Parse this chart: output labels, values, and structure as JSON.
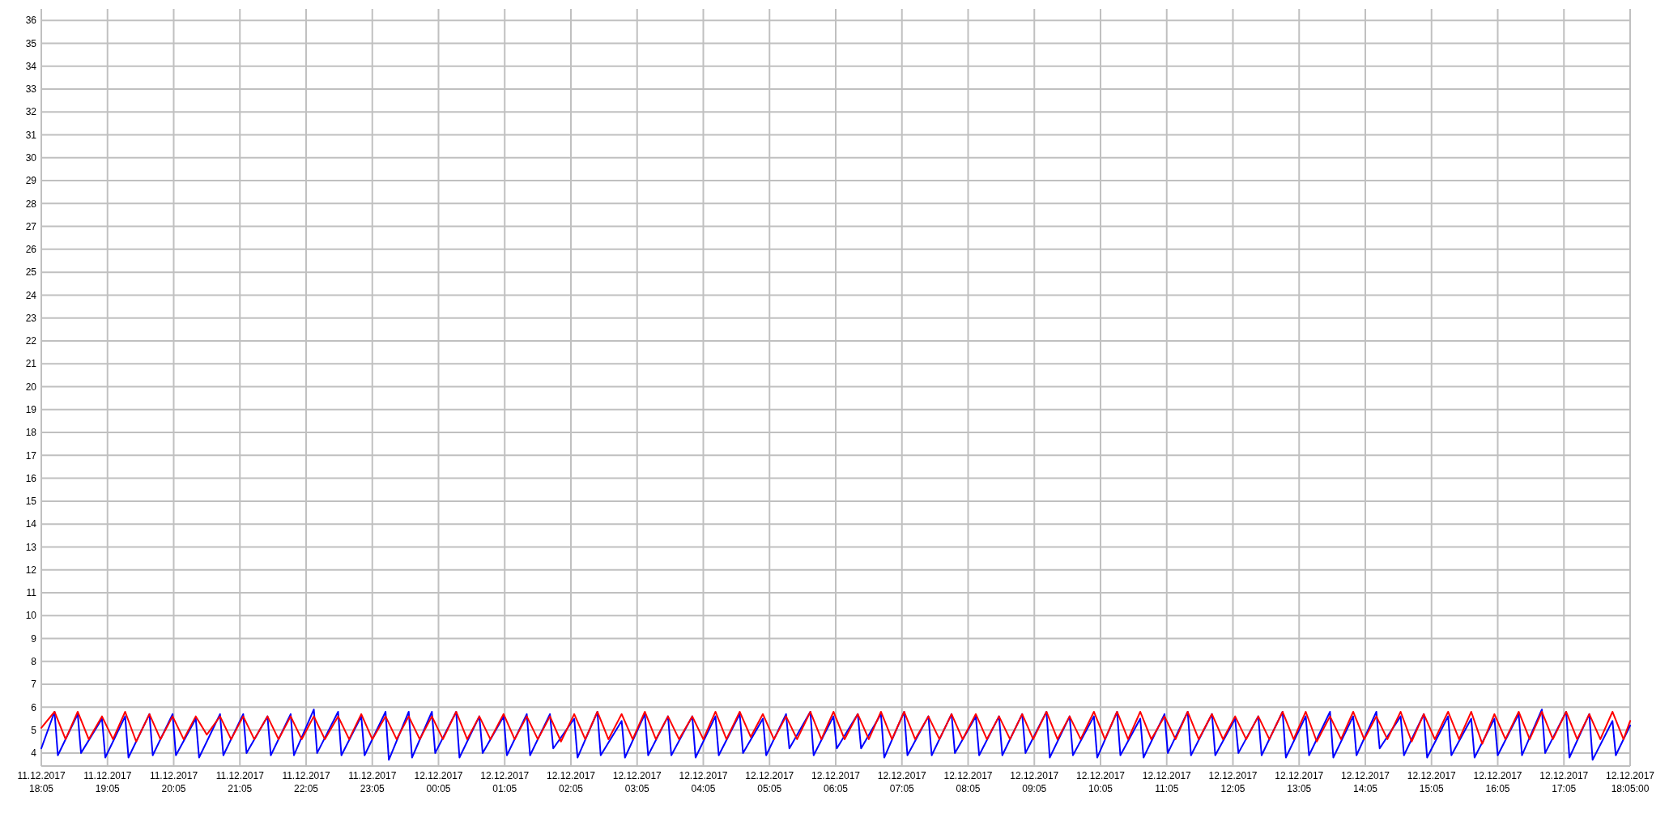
{
  "chart_data": {
    "type": "line",
    "xlim": [
      "2017-12-11T18:05",
      "2017-12-12T18:05"
    ],
    "ylim": [
      3.43,
      36.5
    ],
    "grid": true,
    "line_style": "solid",
    "marker": "none",
    "yticks": [
      4,
      5,
      6,
      7,
      8,
      9,
      10,
      11,
      12,
      13,
      14,
      15,
      16,
      17,
      18,
      19,
      20,
      21,
      22,
      23,
      24,
      25,
      26,
      27,
      28,
      29,
      30,
      31,
      32,
      33,
      34,
      35,
      36
    ],
    "xticks": [
      {
        "value": "2017-12-11T18:05",
        "label": "11.12.2017\n18:05"
      },
      {
        "value": "2017-12-11T19:05",
        "label": "11.12.2017\n19:05"
      },
      {
        "value": "2017-12-11T20:05",
        "label": "11.12.2017\n20:05"
      },
      {
        "value": "2017-12-11T21:05",
        "label": "11.12.2017\n21:05"
      },
      {
        "value": "2017-12-11T22:05",
        "label": "11.12.2017\n22:05"
      },
      {
        "value": "2017-12-11T23:05",
        "label": "11.12.2017\n23:05"
      },
      {
        "value": "2017-12-12T00:05",
        "label": "12.12.2017\n00:05"
      },
      {
        "value": "2017-12-12T01:05",
        "label": "12.12.2017\n01:05"
      },
      {
        "value": "2017-12-12T02:05",
        "label": "12.12.2017\n02:05"
      },
      {
        "value": "2017-12-12T03:05",
        "label": "12.12.2017\n03:05"
      },
      {
        "value": "2017-12-12T04:05",
        "label": "12.12.2017\n04:05"
      },
      {
        "value": "2017-12-12T05:05",
        "label": "12.12.2017\n05:05"
      },
      {
        "value": "2017-12-12T06:05",
        "label": "12.12.2017\n06:05"
      },
      {
        "value": "2017-12-12T07:05",
        "label": "12.12.2017\n07:05"
      },
      {
        "value": "2017-12-12T08:05",
        "label": "12.12.2017\n08:05"
      },
      {
        "value": "2017-12-12T09:05",
        "label": "12.12.2017\n09:05"
      },
      {
        "value": "2017-12-12T10:05",
        "label": "12.12.2017\n10:05"
      },
      {
        "value": "2017-12-12T11:05",
        "label": "12.12.2017\n11:05"
      },
      {
        "value": "2017-12-12T12:05",
        "label": "12.12.2017\n12:05"
      },
      {
        "value": "2017-12-12T13:05",
        "label": "12.12.2017\n13:05"
      },
      {
        "value": "2017-12-12T14:05",
        "label": "12.12.2017\n14:05"
      },
      {
        "value": "2017-12-12T15:05",
        "label": "12.12.2017\n15:05"
      },
      {
        "value": "2017-12-12T16:05",
        "label": "12.12.2017\n16:05"
      },
      {
        "value": "2017-12-12T17:05",
        "label": "12.12.2017\n17:05"
      },
      {
        "value": "2017-12-12T18:05",
        "label": "12.12.2017\n18:05:00"
      }
    ],
    "series": [
      {
        "color": "#0000ff",
        "x": [
          "2017-12-11T18:05",
          "2017-12-11T18:17",
          "2017-12-11T18:20",
          "2017-12-11T18:38",
          "2017-12-11T18:41",
          "2017-12-11T19:00",
          "2017-12-11T19:03",
          "2017-12-11T19:21",
          "2017-12-11T19:24",
          "2017-12-11T19:43",
          "2017-12-11T19:46",
          "2017-12-11T20:04",
          "2017-12-11T20:07",
          "2017-12-11T20:25",
          "2017-12-11T20:28",
          "2017-12-11T20:47",
          "2017-12-11T20:50",
          "2017-12-11T21:08",
          "2017-12-11T21:11",
          "2017-12-11T21:30",
          "2017-12-11T21:33",
          "2017-12-11T21:51",
          "2017-12-11T21:54",
          "2017-12-11T22:12",
          "2017-12-11T22:15",
          "2017-12-11T22:34",
          "2017-12-11T22:37",
          "2017-12-11T22:55",
          "2017-12-11T22:58",
          "2017-12-11T23:17",
          "2017-12-11T23:20",
          "2017-12-11T23:38",
          "2017-12-11T23:41",
          "2017-12-11T23:59",
          "2017-12-12T00:02",
          "2017-12-12T00:21",
          "2017-12-12T00:24",
          "2017-12-12T00:42",
          "2017-12-12T00:45",
          "2017-12-12T01:04",
          "2017-12-12T01:07",
          "2017-12-12T01:25",
          "2017-12-12T01:28",
          "2017-12-12T01:46",
          "2017-12-12T01:49",
          "2017-12-12T02:08",
          "2017-12-12T02:11",
          "2017-12-12T02:29",
          "2017-12-12T02:32",
          "2017-12-12T02:51",
          "2017-12-12T02:54",
          "2017-12-12T03:12",
          "2017-12-12T03:15",
          "2017-12-12T03:33",
          "2017-12-12T03:36",
          "2017-12-12T03:55",
          "2017-12-12T03:58",
          "2017-12-12T04:16",
          "2017-12-12T04:19",
          "2017-12-12T04:38",
          "2017-12-12T04:41",
          "2017-12-12T04:59",
          "2017-12-12T05:02",
          "2017-12-12T05:20",
          "2017-12-12T05:23",
          "2017-12-12T05:42",
          "2017-12-12T05:45",
          "2017-12-12T06:03",
          "2017-12-12T06:06",
          "2017-12-12T06:25",
          "2017-12-12T06:28",
          "2017-12-12T06:46",
          "2017-12-12T06:49",
          "2017-12-12T07:07",
          "2017-12-12T07:10",
          "2017-12-12T07:29",
          "2017-12-12T07:32",
          "2017-12-12T07:50",
          "2017-12-12T07:53",
          "2017-12-12T08:12",
          "2017-12-12T08:15",
          "2017-12-12T08:33",
          "2017-12-12T08:36",
          "2017-12-12T08:54",
          "2017-12-12T08:57",
          "2017-12-12T09:16",
          "2017-12-12T09:19",
          "2017-12-12T09:37",
          "2017-12-12T09:40",
          "2017-12-12T09:59",
          "2017-12-12T10:02",
          "2017-12-12T10:20",
          "2017-12-12T10:23",
          "2017-12-12T10:41",
          "2017-12-12T10:44",
          "2017-12-12T11:03",
          "2017-12-12T11:06",
          "2017-12-12T11:24",
          "2017-12-12T11:27",
          "2017-12-12T11:46",
          "2017-12-12T11:49",
          "2017-12-12T12:07",
          "2017-12-12T12:10",
          "2017-12-12T12:28",
          "2017-12-12T12:31",
          "2017-12-12T12:50",
          "2017-12-12T12:53",
          "2017-12-12T13:11",
          "2017-12-12T13:14",
          "2017-12-12T13:33",
          "2017-12-12T13:36",
          "2017-12-12T13:54",
          "2017-12-12T13:57",
          "2017-12-12T14:15",
          "2017-12-12T14:18",
          "2017-12-12T14:37",
          "2017-12-12T14:40",
          "2017-12-12T14:58",
          "2017-12-12T15:01",
          "2017-12-12T15:20",
          "2017-12-12T15:23",
          "2017-12-12T15:41",
          "2017-12-12T15:44",
          "2017-12-12T16:02",
          "2017-12-12T16:05",
          "2017-12-12T16:24",
          "2017-12-12T16:27",
          "2017-12-12T16:45",
          "2017-12-12T16:48",
          "2017-12-12T17:07",
          "2017-12-12T17:10",
          "2017-12-12T17:28",
          "2017-12-12T17:31",
          "2017-12-12T17:49",
          "2017-12-12T17:52",
          "2017-12-12T18:05"
        ],
        "values": [
          4.2,
          5.8,
          3.9,
          5.7,
          4.0,
          5.5,
          3.8,
          5.6,
          3.8,
          5.7,
          3.9,
          5.7,
          3.9,
          5.5,
          3.8,
          5.7,
          3.9,
          5.7,
          4.0,
          5.6,
          3.9,
          5.7,
          3.9,
          5.9,
          4.0,
          5.8,
          3.9,
          5.6,
          3.9,
          5.8,
          3.7,
          5.8,
          3.8,
          5.8,
          4.0,
          5.8,
          3.8,
          5.6,
          4.0,
          5.6,
          3.9,
          5.7,
          3.9,
          5.7,
          4.2,
          5.5,
          3.8,
          5.8,
          3.9,
          5.4,
          3.8,
          5.7,
          3.9,
          5.6,
          3.9,
          5.6,
          3.8,
          5.6,
          3.9,
          5.7,
          4.0,
          5.5,
          3.9,
          5.7,
          4.2,
          5.8,
          3.9,
          5.6,
          4.2,
          5.7,
          4.2,
          5.7,
          3.8,
          5.8,
          3.9,
          5.6,
          3.9,
          5.7,
          4.0,
          5.6,
          3.9,
          5.6,
          3.9,
          5.7,
          4.0,
          5.8,
          3.8,
          5.6,
          3.9,
          5.6,
          3.8,
          5.8,
          3.9,
          5.5,
          3.8,
          5.7,
          4.0,
          5.8,
          3.9,
          5.7,
          3.9,
          5.5,
          4.0,
          5.6,
          3.9,
          5.8,
          3.8,
          5.6,
          3.9,
          5.8,
          3.8,
          5.6,
          3.9,
          5.8,
          4.2,
          5.6,
          3.9,
          5.7,
          3.8,
          5.6,
          3.9,
          5.5,
          3.8,
          5.5,
          3.9,
          5.7,
          3.9,
          5.9,
          4.0,
          5.8,
          3.8,
          5.7,
          3.7,
          5.4,
          3.9,
          5.2
        ]
      },
      {
        "color": "#ff0000",
        "x": [
          "2017-12-11T18:05",
          "2017-12-11T18:17",
          "2017-12-11T18:27",
          "2017-12-11T18:38",
          "2017-12-11T18:48",
          "2017-12-11T19:00",
          "2017-12-11T19:10",
          "2017-12-11T19:21",
          "2017-12-11T19:31",
          "2017-12-11T19:43",
          "2017-12-11T19:53",
          "2017-12-11T20:04",
          "2017-12-11T20:14",
          "2017-12-11T20:25",
          "2017-12-11T20:35",
          "2017-12-11T20:47",
          "2017-12-11T20:57",
          "2017-12-11T21:08",
          "2017-12-11T21:18",
          "2017-12-11T21:30",
          "2017-12-11T21:40",
          "2017-12-11T21:51",
          "2017-12-11T22:01",
          "2017-12-11T22:12",
          "2017-12-11T22:22",
          "2017-12-11T22:34",
          "2017-12-11T22:44",
          "2017-12-11T22:55",
          "2017-12-11T23:05",
          "2017-12-11T23:17",
          "2017-12-11T23:27",
          "2017-12-11T23:38",
          "2017-12-11T23:48",
          "2017-12-11T23:59",
          "2017-12-12T00:09",
          "2017-12-12T00:21",
          "2017-12-12T00:31",
          "2017-12-12T00:42",
          "2017-12-12T00:52",
          "2017-12-12T01:04",
          "2017-12-12T01:14",
          "2017-12-12T01:25",
          "2017-12-12T01:35",
          "2017-12-12T01:46",
          "2017-12-12T01:56",
          "2017-12-12T02:08",
          "2017-12-12T02:18",
          "2017-12-12T02:29",
          "2017-12-12T02:39",
          "2017-12-12T02:51",
          "2017-12-12T03:01",
          "2017-12-12T03:12",
          "2017-12-12T03:22",
          "2017-12-12T03:33",
          "2017-12-12T03:43",
          "2017-12-12T03:55",
          "2017-12-12T04:05",
          "2017-12-12T04:16",
          "2017-12-12T04:26",
          "2017-12-12T04:38",
          "2017-12-12T04:48",
          "2017-12-12T04:59",
          "2017-12-12T05:09",
          "2017-12-12T05:20",
          "2017-12-12T05:30",
          "2017-12-12T05:42",
          "2017-12-12T05:52",
          "2017-12-12T06:03",
          "2017-12-12T06:13",
          "2017-12-12T06:25",
          "2017-12-12T06:35",
          "2017-12-12T06:46",
          "2017-12-12T06:56",
          "2017-12-12T07:07",
          "2017-12-12T07:17",
          "2017-12-12T07:29",
          "2017-12-12T07:39",
          "2017-12-12T07:50",
          "2017-12-12T08:00",
          "2017-12-12T08:12",
          "2017-12-12T08:22",
          "2017-12-12T08:33",
          "2017-12-12T08:43",
          "2017-12-12T08:54",
          "2017-12-12T09:04",
          "2017-12-12T09:16",
          "2017-12-12T09:26",
          "2017-12-12T09:37",
          "2017-12-12T09:47",
          "2017-12-12T09:59",
          "2017-12-12T10:09",
          "2017-12-12T10:20",
          "2017-12-12T10:30",
          "2017-12-12T10:41",
          "2017-12-12T10:51",
          "2017-12-12T11:03",
          "2017-12-12T11:13",
          "2017-12-12T11:24",
          "2017-12-12T11:34",
          "2017-12-12T11:46",
          "2017-12-12T11:56",
          "2017-12-12T12:07",
          "2017-12-12T12:17",
          "2017-12-12T12:28",
          "2017-12-12T12:38",
          "2017-12-12T12:50",
          "2017-12-12T13:00",
          "2017-12-12T13:11",
          "2017-12-12T13:21",
          "2017-12-12T13:33",
          "2017-12-12T13:43",
          "2017-12-12T13:54",
          "2017-12-12T14:04",
          "2017-12-12T14:15",
          "2017-12-12T14:25",
          "2017-12-12T14:37",
          "2017-12-12T14:47",
          "2017-12-12T14:58",
          "2017-12-12T15:08",
          "2017-12-12T15:20",
          "2017-12-12T15:30",
          "2017-12-12T15:41",
          "2017-12-12T15:51",
          "2017-12-12T16:02",
          "2017-12-12T16:12",
          "2017-12-12T16:24",
          "2017-12-12T16:34",
          "2017-12-12T16:45",
          "2017-12-12T16:55",
          "2017-12-12T17:07",
          "2017-12-12T17:17",
          "2017-12-12T17:28",
          "2017-12-12T17:38",
          "2017-12-12T17:49",
          "2017-12-12T17:59",
          "2017-12-12T18:05"
        ],
        "values": [
          5.1,
          5.8,
          4.6,
          5.8,
          4.6,
          5.6,
          4.6,
          5.8,
          4.5,
          5.7,
          4.6,
          5.6,
          4.6,
          5.6,
          4.8,
          5.6,
          4.6,
          5.6,
          4.6,
          5.6,
          4.6,
          5.6,
          4.6,
          5.6,
          4.6,
          5.6,
          4.6,
          5.7,
          4.6,
          5.6,
          4.6,
          5.6,
          4.6,
          5.6,
          4.6,
          5.8,
          4.6,
          5.6,
          4.6,
          5.7,
          4.6,
          5.6,
          4.6,
          5.6,
          4.5,
          5.7,
          4.6,
          5.8,
          4.6,
          5.7,
          4.6,
          5.8,
          4.6,
          5.6,
          4.6,
          5.6,
          4.6,
          5.8,
          4.6,
          5.8,
          4.7,
          5.7,
          4.6,
          5.6,
          4.6,
          5.8,
          4.6,
          5.8,
          4.6,
          5.7,
          4.6,
          5.8,
          4.6,
          5.8,
          4.6,
          5.6,
          4.6,
          5.7,
          4.6,
          5.7,
          4.6,
          5.6,
          4.6,
          5.7,
          4.6,
          5.8,
          4.6,
          5.6,
          4.6,
          5.8,
          4.6,
          5.8,
          4.6,
          5.8,
          4.6,
          5.6,
          4.6,
          5.8,
          4.6,
          5.7,
          4.6,
          5.6,
          4.6,
          5.6,
          4.6,
          5.8,
          4.6,
          5.8,
          4.5,
          5.6,
          4.6,
          5.8,
          4.6,
          5.6,
          4.6,
          5.8,
          4.5,
          5.7,
          4.6,
          5.8,
          4.6,
          5.8,
          4.4,
          5.7,
          4.6,
          5.8,
          4.6,
          5.8,
          4.6,
          5.8,
          4.6,
          5.7,
          4.6,
          5.8,
          4.6,
          5.4
        ]
      }
    ]
  }
}
